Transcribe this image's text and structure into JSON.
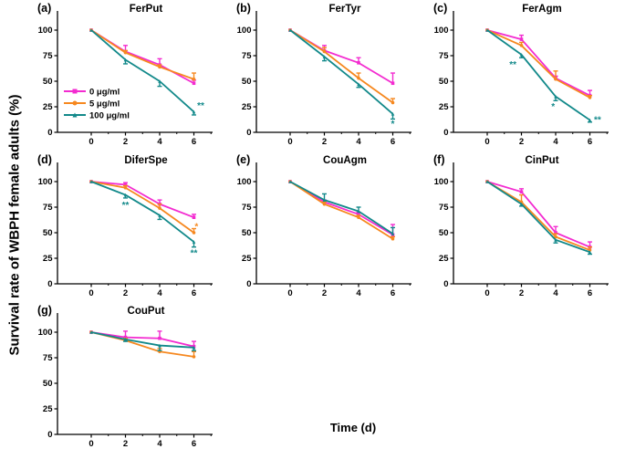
{
  "figure": {
    "y_axis_label": "Survival rate of WBPH female adults (%)",
    "x_axis_label": "Time (d)",
    "x_ticks": [
      0,
      2,
      4,
      6
    ],
    "x_minor_ticks": [
      1,
      3,
      5,
      7
    ],
    "y_ticks": [
      0,
      25,
      50,
      75,
      100
    ],
    "axis_color": "#000000",
    "background": "#ffffff"
  },
  "legend": {
    "position": "inside-panel-a",
    "items": [
      {
        "label": "0 μg/ml",
        "color": "#f32bd0",
        "marker": "square"
      },
      {
        "label": "5 μg/ml",
        "color": "#f6881f",
        "marker": "circle"
      },
      {
        "label": "100 μg/ml",
        "color": "#12898a",
        "marker": "triangle"
      }
    ]
  },
  "chart_data": [
    {
      "type": "line",
      "panel_label": "(a)",
      "title": "FerPut",
      "show_legend": true,
      "x": [
        0,
        2,
        4,
        6
      ],
      "xlim": [
        0,
        7
      ],
      "ylim": [
        0,
        100
      ],
      "grid": false,
      "series": [
        {
          "name": "0 μg/ml",
          "values": [
            100,
            79,
            66,
            48
          ],
          "err_up": [
            0,
            6,
            6,
            3
          ],
          "err_down": [
            0,
            0,
            0,
            0
          ]
        },
        {
          "name": "5 μg/ml",
          "values": [
            100,
            78,
            64,
            52
          ],
          "err_up": [
            0,
            2,
            2,
            6
          ],
          "err_down": [
            0,
            0,
            0,
            0
          ]
        },
        {
          "name": "100 μg/ml",
          "values": [
            100,
            71,
            50,
            20
          ],
          "err_up": [
            0,
            0,
            0,
            0
          ],
          "err_down": [
            0,
            4,
            5,
            3
          ]
        }
      ],
      "annotations": [
        {
          "text": "**",
          "series": 2,
          "x": 6.4,
          "y": 26
        }
      ]
    },
    {
      "type": "line",
      "panel_label": "(b)",
      "title": "FerTyr",
      "show_legend": false,
      "x": [
        0,
        2,
        4,
        6
      ],
      "xlim": [
        0,
        7
      ],
      "ylim": [
        0,
        100
      ],
      "grid": false,
      "series": [
        {
          "name": "0 μg/ml",
          "values": [
            100,
            80,
            68,
            48
          ],
          "err_up": [
            0,
            5,
            5,
            10
          ],
          "err_down": [
            0,
            0,
            0,
            0
          ]
        },
        {
          "name": "5 μg/ml",
          "values": [
            100,
            79,
            53,
            29
          ],
          "err_up": [
            0,
            4,
            5,
            4
          ],
          "err_down": [
            0,
            0,
            0,
            0
          ]
        },
        {
          "name": "100 μg/ml",
          "values": [
            100,
            74,
            47,
            18
          ],
          "err_up": [
            0,
            0,
            0,
            0
          ],
          "err_down": [
            0,
            4,
            3,
            5
          ]
        }
      ],
      "annotations": [
        {
          "text": "*",
          "series": 2,
          "x": 6,
          "y": 8
        }
      ]
    },
    {
      "type": "line",
      "panel_label": "(c)",
      "title": "FerAgm",
      "show_legend": false,
      "x": [
        0,
        2,
        4,
        6
      ],
      "xlim": [
        0,
        7
      ],
      "ylim": [
        0,
        100
      ],
      "grid": false,
      "series": [
        {
          "name": "0 μg/ml",
          "values": [
            100,
            91,
            53,
            36
          ],
          "err_up": [
            0,
            4,
            2,
            5
          ],
          "err_down": [
            0,
            0,
            0,
            0
          ]
        },
        {
          "name": "5 μg/ml",
          "values": [
            100,
            85,
            52,
            34
          ],
          "err_up": [
            0,
            3,
            8,
            2
          ],
          "err_down": [
            0,
            0,
            0,
            0
          ]
        },
        {
          "name": "100 μg/ml",
          "values": [
            100,
            76,
            35,
            12
          ],
          "err_up": [
            0,
            0,
            0,
            0
          ],
          "err_down": [
            0,
            3,
            4,
            2
          ]
        }
      ],
      "annotations": [
        {
          "text": "**",
          "series": 2,
          "x": 1.5,
          "y": 66
        },
        {
          "text": "*",
          "series": 2,
          "x": 3.85,
          "y": 25
        },
        {
          "text": "**",
          "series": 2,
          "x": 6.45,
          "y": 12
        }
      ]
    },
    {
      "type": "line",
      "panel_label": "(d)",
      "title": "DiferSpe",
      "show_legend": false,
      "x": [
        0,
        2,
        4,
        6
      ],
      "xlim": [
        0,
        7
      ],
      "ylim": [
        0,
        100
      ],
      "grid": false,
      "series": [
        {
          "name": "0 μg/ml",
          "values": [
            100,
            97,
            78,
            65
          ],
          "err_up": [
            0,
            2,
            4,
            3
          ],
          "err_down": [
            0,
            0,
            0,
            0
          ]
        },
        {
          "name": "5 μg/ml",
          "values": [
            100,
            94,
            74,
            50
          ],
          "err_up": [
            0,
            2,
            4,
            4
          ],
          "err_down": [
            0,
            0,
            0,
            0
          ]
        },
        {
          "name": "100 μg/ml",
          "values": [
            100,
            87,
            67,
            41
          ],
          "err_up": [
            0,
            0,
            0,
            0
          ],
          "err_down": [
            0,
            3,
            4,
            5
          ]
        }
      ],
      "annotations": [
        {
          "text": "**",
          "series": 2,
          "x": 2,
          "y": 77
        },
        {
          "text": "*",
          "series": 1,
          "x": 6.15,
          "y": 56
        },
        {
          "text": "**",
          "series": 2,
          "x": 6,
          "y": 30
        }
      ]
    },
    {
      "type": "line",
      "panel_label": "(e)",
      "title": "CouAgm",
      "show_legend": false,
      "x": [
        0,
        2,
        4,
        6
      ],
      "xlim": [
        0,
        7
      ],
      "ylim": [
        0,
        100
      ],
      "grid": false,
      "series": [
        {
          "name": "0 μg/ml",
          "values": [
            100,
            80,
            68,
            48
          ],
          "err_up": [
            0,
            2,
            2,
            10
          ],
          "err_down": [
            0,
            0,
            0,
            0
          ]
        },
        {
          "name": "5 μg/ml",
          "values": [
            100,
            78,
            65,
            44
          ],
          "err_up": [
            0,
            2,
            2,
            2
          ],
          "err_down": [
            0,
            0,
            0,
            0
          ]
        },
        {
          "name": "100 μg/ml",
          "values": [
            100,
            82,
            71,
            49
          ],
          "err_up": [
            0,
            6,
            4,
            6
          ],
          "err_down": [
            0,
            0,
            0,
            0
          ]
        }
      ],
      "annotations": []
    },
    {
      "type": "line",
      "panel_label": "(f)",
      "title": "CinPut",
      "show_legend": false,
      "x": [
        0,
        2,
        4,
        6
      ],
      "xlim": [
        0,
        7
      ],
      "ylim": [
        0,
        100
      ],
      "grid": false,
      "series": [
        {
          "name": "0 μg/ml",
          "values": [
            100,
            90,
            50,
            36
          ],
          "err_up": [
            0,
            3,
            6,
            5
          ],
          "err_down": [
            0,
            0,
            0,
            0
          ]
        },
        {
          "name": "5 μg/ml",
          "values": [
            100,
            80,
            46,
            33
          ],
          "err_up": [
            0,
            7,
            3,
            3
          ],
          "err_down": [
            0,
            0,
            0,
            0
          ]
        },
        {
          "name": "100 μg/ml",
          "values": [
            100,
            78,
            43,
            31
          ],
          "err_up": [
            0,
            0,
            0,
            0
          ],
          "err_down": [
            0,
            2,
            3,
            2
          ]
        }
      ],
      "annotations": []
    },
    {
      "type": "line",
      "panel_label": "(g)",
      "title": "CouPut",
      "show_legend": false,
      "x": [
        0,
        2,
        4,
        6
      ],
      "xlim": [
        0,
        7
      ],
      "ylim": [
        0,
        100
      ],
      "grid": false,
      "series": [
        {
          "name": "0 μg/ml",
          "values": [
            100,
            95,
            94,
            86
          ],
          "err_up": [
            0,
            6,
            7,
            5
          ],
          "err_down": [
            0,
            0,
            0,
            0
          ]
        },
        {
          "name": "5 μg/ml",
          "values": [
            100,
            92,
            81,
            76
          ],
          "err_up": [
            0,
            2,
            3,
            5
          ],
          "err_down": [
            0,
            0,
            0,
            0
          ]
        },
        {
          "name": "100 μg/ml",
          "values": [
            100,
            93,
            87,
            85
          ],
          "err_up": [
            0,
            0,
            0,
            0
          ],
          "err_down": [
            0,
            2,
            5,
            3
          ]
        }
      ],
      "annotations": []
    }
  ]
}
